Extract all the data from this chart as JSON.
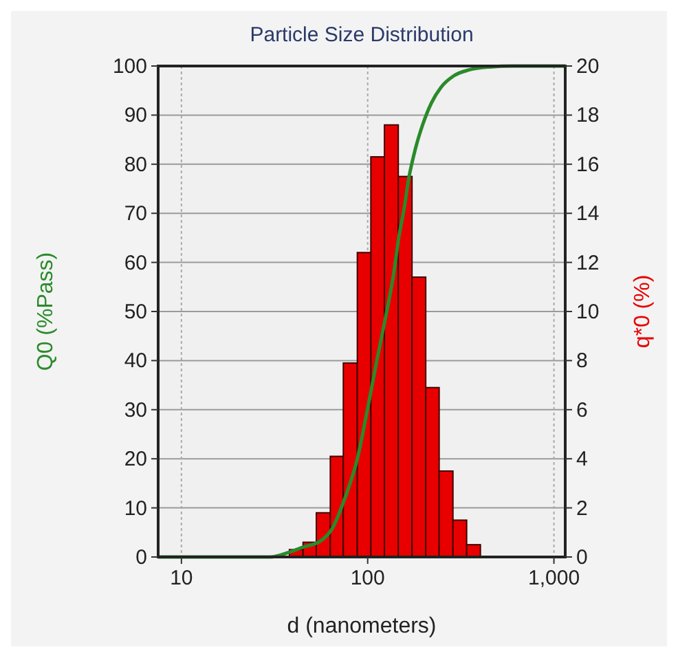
{
  "chart_data": {
    "type": "histogram",
    "title": "Particle Size Distribution",
    "xlabel": "d (nanometers)",
    "ylabel": "Q0 (%Pass)",
    "y2label": "q*0 (%)",
    "log": "x",
    "grid": true,
    "xlim": [
      7.5,
      1150
    ],
    "xticks": [
      10,
      100,
      {
        "value": 1000,
        "label": "1,000"
      }
    ],
    "ylim": [
      0,
      100
    ],
    "yticks": [
      0,
      10,
      20,
      30,
      40,
      50,
      60,
      70,
      80,
      90,
      100
    ],
    "y2lim": [
      0,
      20
    ],
    "y2ticks": [
      0,
      2,
      4,
      6,
      8,
      10,
      12,
      14,
      16,
      18,
      20
    ],
    "series": [
      {
        "axis": "y2",
        "color": "#e80000",
        "bins": [
          38,
          45,
          53,
          63,
          74,
          88,
          104,
          123,
          146,
          173,
          205,
          242,
          287,
          340,
          403
        ],
        "values": [
          0.3,
          0.6,
          1.8,
          4.1,
          7.9,
          12.4,
          16.3,
          17.6,
          15.5,
          11.4,
          6.9,
          3.5,
          1.5,
          0.5
        ]
      },
      {
        "type": "line",
        "axis": "y",
        "color": "#2a8a2a",
        "x": [
          7.5,
          30,
          38,
          45,
          56,
          65,
          75,
          88,
          100,
          112,
          125,
          137,
          148,
          157,
          166,
          180,
          198,
          220,
          248,
          290,
          350,
          450,
          600,
          1150
        ],
        "values": [
          0,
          0,
          1,
          2,
          3.3,
          6,
          11.7,
          20,
          30.3,
          40,
          49,
          57,
          65.8,
          71,
          77,
          83,
          88.2,
          92.5,
          95.7,
          98,
          99.2,
          99.8,
          100,
          100
        ]
      }
    ]
  }
}
